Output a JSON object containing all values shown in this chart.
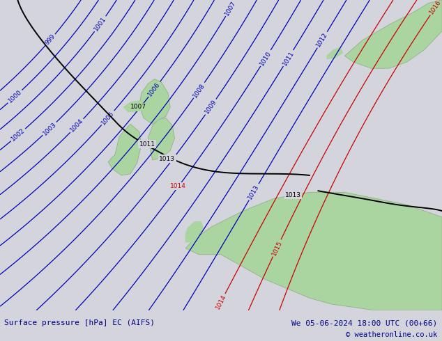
{
  "title_left": "Surface pressure [hPa] EC (AIFS)",
  "title_right": "We 05-06-2024 18:00 UTC (00+66)",
  "copyright": "© weatheronline.co.uk",
  "bg_color": "#d4d4dc",
  "land_color": "#aad4a0",
  "footer_bg": "#e0e0e8",
  "blue_color": "#0000bb",
  "red_color": "#cc0000",
  "black_color": "#000000",
  "footer_text_color": "#00008b",
  "footer_fontsize": 8.0,
  "label_fontsize": 6.5
}
